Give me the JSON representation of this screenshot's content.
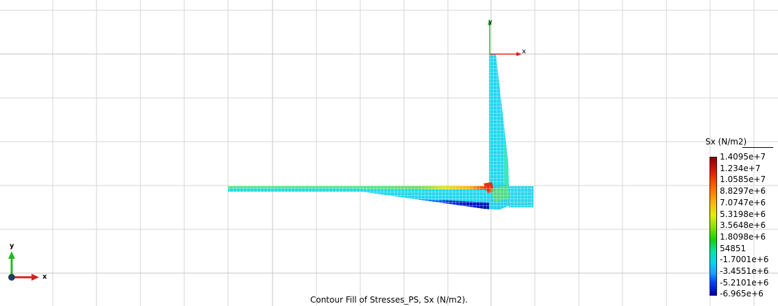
{
  "legend": {
    "title": "Sx (N/m2)",
    "labels": [
      "1.4095e+7",
      "1.234e+7",
      "1.0585e+7",
      "8.8297e+6",
      "7.0747e+6",
      "5.3198e+6",
      "3.5648e+6",
      "1.8098e+6",
      "54851",
      "-1.7001e+6",
      "-3.4551e+6",
      "-5.2101e+6",
      "-6.965e+6"
    ]
  },
  "caption": "Contour Fill of Stresses_PS, Sx (N/m2).",
  "global_axes": {
    "x": "x",
    "y": "y"
  },
  "local_axes": {
    "x": "x",
    "y": "y"
  },
  "colors": {
    "grid": "#d6d6d6",
    "mesh_line": "#ffffff",
    "contour_high": "#8b0000",
    "contour_mid": "#00d8f0",
    "contour_low": "#00009a",
    "axis_x": "#e02020",
    "axis_y": "#20c020"
  }
}
